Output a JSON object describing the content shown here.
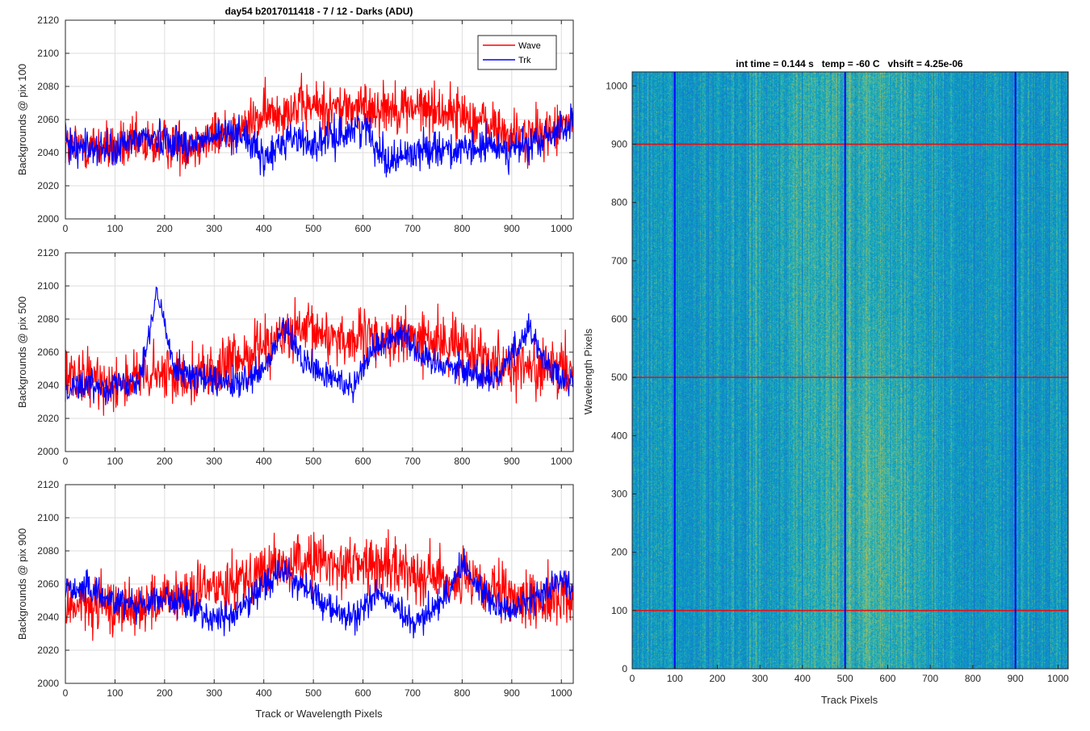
{
  "figure": {
    "title": "day54 b2017011418 - 7 / 12 - Darks (ADU)",
    "xlabel": "Track or Wavelength Pixels"
  },
  "chart_data": [
    {
      "type": "line",
      "ylabel": "Backgrounds @ pix 100",
      "xlim": [
        0,
        1024
      ],
      "ylim": [
        2000,
        2120
      ],
      "xticks": [
        0,
        100,
        200,
        300,
        400,
        500,
        600,
        700,
        800,
        900,
        1000
      ],
      "yticks": [
        2000,
        2020,
        2040,
        2060,
        2080,
        2100,
        2120
      ],
      "grid": true,
      "legend": {
        "location": "top-right",
        "entries": [
          "Wave",
          "Trk"
        ]
      },
      "series": [
        {
          "name": "Wave",
          "color": "#ff0000",
          "noise": 10,
          "x": [
            0,
            100,
            200,
            250,
            300,
            350,
            400,
            450,
            500,
            550,
            600,
            650,
            700,
            750,
            800,
            850,
            900,
            950,
            1000,
            1024
          ],
          "y": [
            2044,
            2043,
            2046,
            2045,
            2050,
            2053,
            2062,
            2067,
            2068,
            2067,
            2067,
            2068,
            2067,
            2066,
            2063,
            2057,
            2050,
            2050,
            2055,
            2060
          ]
        },
        {
          "name": "Trk",
          "color": "#0000ff",
          "noise": 7,
          "x": [
            0,
            100,
            150,
            200,
            250,
            300,
            350,
            400,
            450,
            500,
            550,
            600,
            650,
            700,
            750,
            800,
            850,
            900,
            950,
            1000,
            1024
          ],
          "y": [
            2045,
            2041,
            2050,
            2048,
            2045,
            2049,
            2054,
            2035,
            2050,
            2045,
            2050,
            2057,
            2035,
            2040,
            2044,
            2040,
            2044,
            2042,
            2045,
            2055,
            2058
          ]
        }
      ]
    },
    {
      "type": "line",
      "ylabel": "Backgrounds @ pix 500",
      "xlim": [
        0,
        1024
      ],
      "ylim": [
        2000,
        2120
      ],
      "xticks": [
        0,
        100,
        200,
        300,
        400,
        500,
        600,
        700,
        800,
        900,
        1000
      ],
      "yticks": [
        2000,
        2020,
        2040,
        2060,
        2080,
        2100,
        2120
      ],
      "grid": true,
      "series": [
        {
          "name": "Wave",
          "color": "#ff0000",
          "noise": 11,
          "x": [
            0,
            100,
            200,
            300,
            350,
            400,
            450,
            500,
            550,
            600,
            650,
            700,
            750,
            800,
            850,
            900,
            950,
            1000,
            1024
          ],
          "y": [
            2043,
            2042,
            2046,
            2048,
            2055,
            2066,
            2070,
            2072,
            2069,
            2067,
            2068,
            2069,
            2066,
            2064,
            2057,
            2052,
            2050,
            2049,
            2050
          ]
        },
        {
          "name": "Trk",
          "color": "#0000ff",
          "noise": 6,
          "x": [
            0,
            100,
            150,
            185,
            220,
            260,
            300,
            350,
            400,
            440,
            480,
            520,
            580,
            620,
            680,
            720,
            780,
            820,
            870,
            935,
            970,
            1000,
            1024
          ],
          "y": [
            2040,
            2040,
            2045,
            2095,
            2052,
            2045,
            2042,
            2040,
            2048,
            2075,
            2055,
            2046,
            2040,
            2062,
            2073,
            2056,
            2052,
            2047,
            2045,
            2075,
            2053,
            2042,
            2041
          ]
        }
      ]
    },
    {
      "type": "line",
      "ylabel": "Backgrounds @ pix 900",
      "xlim": [
        0,
        1024
      ],
      "ylim": [
        2000,
        2120
      ],
      "xticks": [
        0,
        100,
        200,
        300,
        400,
        500,
        600,
        700,
        800,
        900,
        1000
      ],
      "yticks": [
        2000,
        2020,
        2040,
        2060,
        2080,
        2100,
        2120
      ],
      "grid": true,
      "series": [
        {
          "name": "Wave",
          "color": "#ff0000",
          "noise": 11,
          "x": [
            0,
            100,
            200,
            300,
            350,
            400,
            450,
            500,
            550,
            600,
            650,
            700,
            750,
            800,
            850,
            900,
            950,
            1000,
            1024
          ],
          "y": [
            2047,
            2046,
            2049,
            2058,
            2064,
            2068,
            2071,
            2074,
            2072,
            2072,
            2070,
            2068,
            2064,
            2062,
            2056,
            2051,
            2050,
            2052,
            2052
          ]
        },
        {
          "name": "Trk",
          "color": "#0000ff",
          "noise": 6,
          "x": [
            0,
            40,
            100,
            150,
            200,
            260,
            300,
            350,
            400,
            440,
            480,
            530,
            580,
            630,
            700,
            760,
            800,
            850,
            900,
            950,
            1000,
            1024
          ],
          "y": [
            2058,
            2057,
            2050,
            2048,
            2052,
            2046,
            2038,
            2043,
            2060,
            2068,
            2058,
            2046,
            2038,
            2056,
            2035,
            2050,
            2072,
            2052,
            2044,
            2052,
            2063,
            2058
          ]
        }
      ]
    },
    {
      "type": "heatmap",
      "title": "int time = 0.144 s   temp = -60 C   vhsift = 4.25e-06",
      "xlabel": "Track Pixels",
      "ylabel": "Wavelength Pixels",
      "xlim": [
        0,
        1024
      ],
      "ylim": [
        0,
        1024
      ],
      "xticks": [
        0,
        100,
        200,
        300,
        400,
        500,
        600,
        700,
        800,
        900,
        1000
      ],
      "yticks": [
        0,
        100,
        200,
        300,
        400,
        500,
        600,
        700,
        800,
        900,
        1000
      ],
      "colormap": "parula",
      "vertical_lines": {
        "x": [
          100,
          500,
          900
        ],
        "color": "#0000ff"
      },
      "horizontal_lines": {
        "y": [
          100,
          500,
          900
        ],
        "color": "#ff0000"
      }
    }
  ]
}
